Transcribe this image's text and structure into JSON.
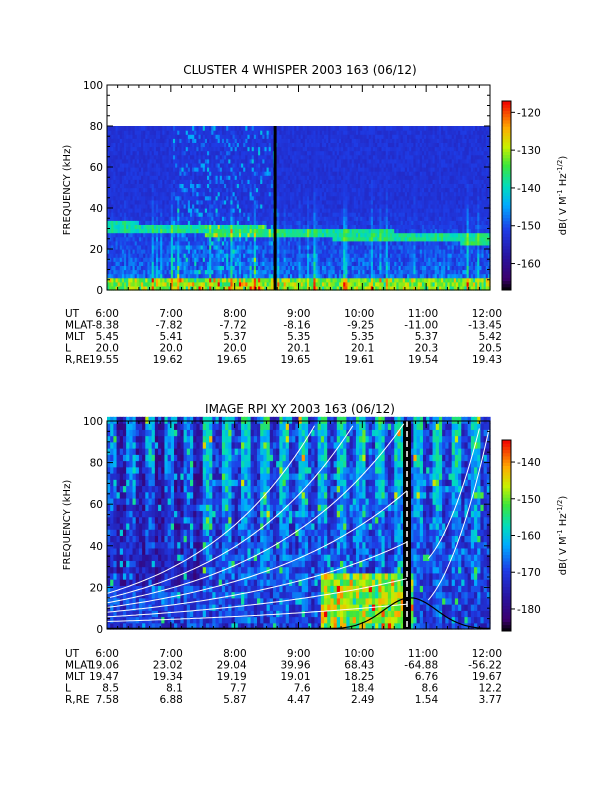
{
  "chart_data": [
    {
      "type": "heatmap",
      "title": "CLUSTER 4 WHISPER 2003 163 (06/12)",
      "ylabel": "FREQUENCY (kHz)",
      "ylim": [
        0,
        100
      ],
      "yticks": [
        "0",
        "20",
        "40",
        "60",
        "80",
        "100"
      ],
      "x_ticks": [
        "6:00",
        "7:00",
        "8:00",
        "9:00",
        "10:00",
        "11:00",
        "12:00"
      ],
      "xlim": [
        "6:00",
        "12:00"
      ],
      "data_max_frequency_khz": 80,
      "colorbar": {
        "label_html": "dB( V M<sup>-1</sup> Hz<sup>-1/2</sup>)",
        "label_parts": [
          "dB( V M",
          "-1",
          " Hz",
          "-1/2",
          ")"
        ],
        "range": [
          -167,
          -117
        ],
        "ticks": [
          "-120",
          "-130",
          "-140",
          "-150",
          "-160"
        ],
        "tick_values": [
          -120,
          -130,
          -140,
          -150,
          -160
        ]
      },
      "features": [
        {
          "name": "plasma-frequency band",
          "time_start": "6:00",
          "time_end": "12:00",
          "frequency_khz": [
            30,
            27,
            25,
            24
          ]
        },
        {
          "name": "data gap line",
          "time": "8:38"
        }
      ],
      "ephemeris": {
        "labels": [
          "UT",
          "MLAT",
          "MLT",
          "L",
          "R,RE"
        ],
        "rows": [
          [
            "6:00",
            "7:00",
            "8:00",
            "9:00",
            "10:00",
            "11:00",
            "12:00"
          ],
          [
            "-8.38",
            "-7.82",
            "-7.72",
            "-8.16",
            "-9.25",
            "-11.00",
            "-13.45"
          ],
          [
            "5.45",
            "5.41",
            "5.37",
            "5.35",
            "5.35",
            "5.37",
            "5.42"
          ],
          [
            "20.0",
            "20.0",
            "20.0",
            "20.1",
            "20.1",
            "20.3",
            "20.5"
          ],
          [
            "19.55",
            "19.62",
            "19.65",
            "19.65",
            "19.61",
            "19.54",
            "19.43"
          ]
        ]
      }
    },
    {
      "type": "heatmap",
      "title": "IMAGE RPI XY 2003 163 (06/12)",
      "ylabel": "FREQUENCY (kHz)",
      "ylim": [
        0,
        100
      ],
      "yticks": [
        "0",
        "20",
        "40",
        "60",
        "80",
        "100"
      ],
      "x_ticks": [
        "6:00",
        "7:00",
        "8:00",
        "9:00",
        "10:00",
        "11:00",
        "12:00"
      ],
      "xlim": [
        "6:00",
        "12:00"
      ],
      "colorbar": {
        "label_html": "dB( V M<sup>-1</sup> Hz<sup>-1/2</sup>)",
        "label_parts": [
          "dB( V M",
          "-1",
          " Hz",
          "-1/2",
          ")"
        ],
        "range": [
          -186,
          -134
        ],
        "ticks": [
          "-140",
          "-150",
          "-160",
          "-170",
          "-180"
        ],
        "tick_values": [
          -140,
          -150,
          -160,
          -170,
          -180
        ]
      },
      "overlay_curves": {
        "color": "#ffffff",
        "count": 7,
        "description": "white model curves rising toward perigee"
      },
      "features": [
        {
          "name": "data gap (dashed white line)",
          "time": "10:42"
        },
        {
          "name": "electron gyrofrequency (black)",
          "peak_time": "10:45",
          "peak_khz": 15
        }
      ],
      "ephemeris": {
        "labels": [
          "UT",
          "MLAT",
          "MLT",
          "L",
          "R,RE"
        ],
        "rows": [
          [
            "6:00",
            "7:00",
            "8:00",
            "9:00",
            "10:00",
            "11:00",
            "12:00"
          ],
          [
            "19.06",
            "23.02",
            "29.04",
            "39.96",
            "68.43",
            "-64.88",
            "-56.22"
          ],
          [
            "19.47",
            "19.34",
            "19.19",
            "19.01",
            "18.25",
            "6.76",
            "19.67"
          ],
          [
            "8.5",
            "8.1",
            "7.7",
            "7.6",
            "18.4",
            "8.6",
            "12.2"
          ],
          [
            "7.58",
            "6.88",
            "5.87",
            "4.47",
            "2.49",
            "1.54",
            "3.77"
          ]
        ]
      }
    }
  ]
}
